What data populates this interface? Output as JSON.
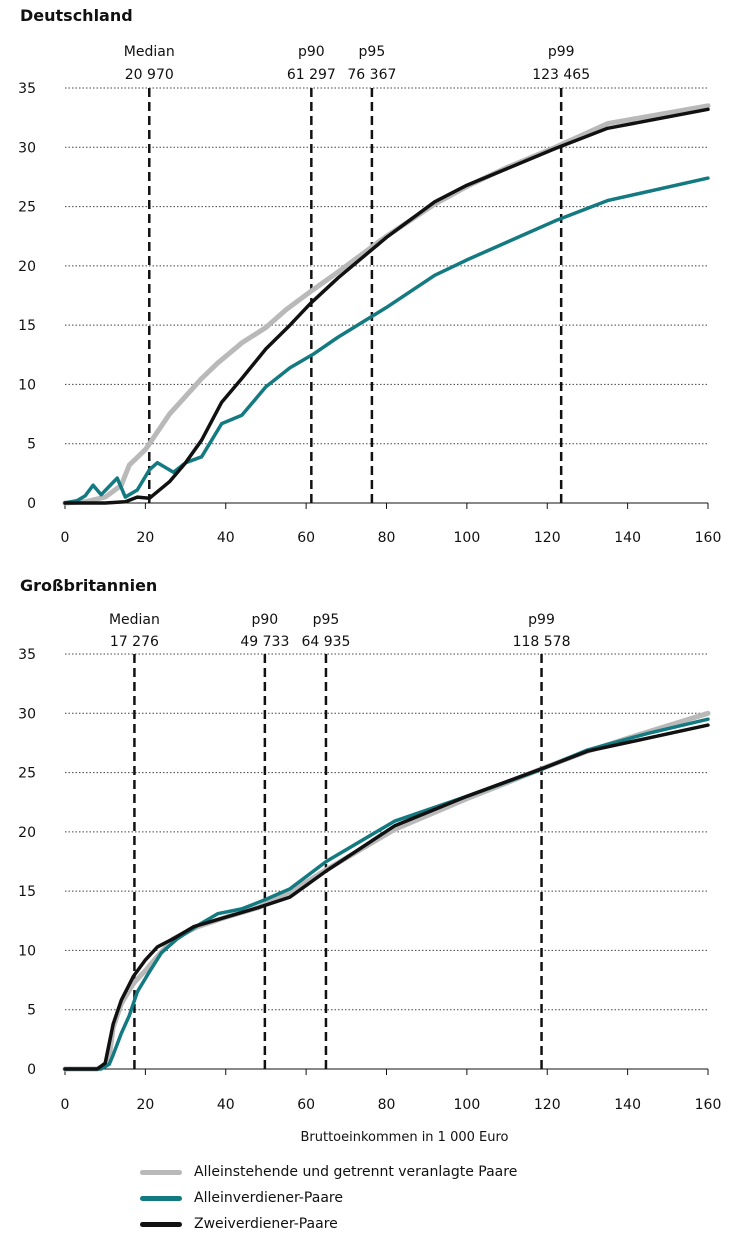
{
  "chart_data": [
    {
      "type": "line",
      "title": "Deutschland",
      "xlabel": "",
      "ylabel": "",
      "xlim": [
        0,
        160
      ],
      "ylim": [
        0,
        35
      ],
      "xticks": [
        0,
        20,
        40,
        60,
        80,
        100,
        120,
        140,
        160
      ],
      "yticks": [
        0,
        5,
        10,
        15,
        20,
        25,
        30,
        35
      ],
      "grid": "horizontal-dotted",
      "percentiles": [
        {
          "label": "Median",
          "value_label": "20 970",
          "x": 20.97
        },
        {
          "label": "p90",
          "value_label": "61 297",
          "x": 61.297
        },
        {
          "label": "p95",
          "value_label": "76 367",
          "x": 76.367
        },
        {
          "label": "p99",
          "value_label": "123 465",
          "x": 123.465
        }
      ],
      "series": [
        {
          "name": "Alleinstehende und getrennt veranlagte Paare",
          "color": "#b9b9b9",
          "points": [
            [
              0,
              0
            ],
            [
              5,
              0.1
            ],
            [
              10,
              0.5
            ],
            [
              14,
              1.5
            ],
            [
              16,
              3.2
            ],
            [
              20,
              4.5
            ],
            [
              22,
              5.5
            ],
            [
              26,
              7.5
            ],
            [
              30,
              9
            ],
            [
              34,
              10.5
            ],
            [
              38,
              11.8
            ],
            [
              44,
              13.5
            ],
            [
              50,
              14.8
            ],
            [
              55,
              16.3
            ],
            [
              61,
              17.8
            ],
            [
              68,
              19.5
            ],
            [
              80,
              22.5
            ],
            [
              92,
              25.2
            ],
            [
              100,
              26.7
            ],
            [
              110,
              28.3
            ],
            [
              122,
              30
            ],
            [
              135,
              32
            ],
            [
              160,
              33.5
            ]
          ]
        },
        {
          "name": "Alleinverdiener-Paare",
          "color": "#127a80",
          "points": [
            [
              0,
              0
            ],
            [
              3,
              0.2
            ],
            [
              5,
              0.6
            ],
            [
              7,
              1.5
            ],
            [
              9,
              0.7
            ],
            [
              11,
              1.4
            ],
            [
              13,
              2.1
            ],
            [
              15,
              0.5
            ],
            [
              18,
              1.1
            ],
            [
              21,
              2.8
            ],
            [
              23,
              3.4
            ],
            [
              27,
              2.6
            ],
            [
              30,
              3.4
            ],
            [
              34,
              3.9
            ],
            [
              39,
              6.7
            ],
            [
              44,
              7.4
            ],
            [
              50,
              9.8
            ],
            [
              56,
              11.4
            ],
            [
              62,
              12.6
            ],
            [
              68,
              14
            ],
            [
              80,
              16.5
            ],
            [
              92,
              19.2
            ],
            [
              100,
              20.5
            ],
            [
              110,
              22
            ],
            [
              122,
              23.8
            ],
            [
              135,
              25.5
            ],
            [
              160,
              27.4
            ]
          ]
        },
        {
          "name": "Zweiverdiener-Paare",
          "color": "#111111",
          "points": [
            [
              0,
              0
            ],
            [
              10,
              0
            ],
            [
              15,
              0.1
            ],
            [
              18,
              0.5
            ],
            [
              21,
              0.4
            ],
            [
              26,
              1.8
            ],
            [
              30,
              3.4
            ],
            [
              34,
              5.3
            ],
            [
              39,
              8.5
            ],
            [
              44,
              10.5
            ],
            [
              50,
              13
            ],
            [
              56,
              15
            ],
            [
              61,
              16.8
            ],
            [
              68,
              19
            ],
            [
              80,
              22.4
            ],
            [
              92,
              25.4
            ],
            [
              100,
              26.8
            ],
            [
              110,
              28.2
            ],
            [
              122,
              29.9
            ],
            [
              135,
              31.6
            ],
            [
              160,
              33.2
            ]
          ]
        }
      ]
    },
    {
      "type": "line",
      "title": "Großbritannien",
      "xlabel": "Bruttoeinkommen in 1 000 Euro",
      "ylabel": "",
      "xlim": [
        0,
        160
      ],
      "ylim": [
        0,
        35
      ],
      "xticks": [
        0,
        20,
        40,
        60,
        80,
        100,
        120,
        140,
        160
      ],
      "yticks": [
        0,
        5,
        10,
        15,
        20,
        25,
        30,
        35
      ],
      "grid": "horizontal-dotted",
      "percentiles": [
        {
          "label": "Median",
          "value_label": "17 276",
          "x": 17.276
        },
        {
          "label": "p90",
          "value_label": "49 733",
          "x": 49.733
        },
        {
          "label": "p95",
          "value_label": "64 935",
          "x": 64.935
        },
        {
          "label": "p99",
          "value_label": "118 578",
          "x": 118.578
        }
      ],
      "series": [
        {
          "name": "Alleinstehende und getrennt veranlagte Paare",
          "color": "#b9b9b9",
          "points": [
            [
              0,
              0
            ],
            [
              8,
              0
            ],
            [
              10,
              0.3
            ],
            [
              11,
              1
            ],
            [
              12,
              3.5
            ],
            [
              14,
              5.5
            ],
            [
              17,
              7.2
            ],
            [
              20,
              8.3
            ],
            [
              23,
              9.5
            ],
            [
              27,
              11
            ],
            [
              33,
              12
            ],
            [
              40,
              12.8
            ],
            [
              48,
              13.6
            ],
            [
              56,
              14.9
            ],
            [
              65,
              16.8
            ],
            [
              82,
              20.2
            ],
            [
              100,
              22.8
            ],
            [
              120,
              25.5
            ],
            [
              130,
              26.8
            ],
            [
              140,
              27.9
            ],
            [
              160,
              30
            ]
          ]
        },
        {
          "name": "Alleinverdiener-Paare",
          "color": "#127a80",
          "points": [
            [
              0,
              0
            ],
            [
              9,
              0
            ],
            [
              11,
              0.4
            ],
            [
              12,
              1.2
            ],
            [
              14,
              3
            ],
            [
              16,
              4.5
            ],
            [
              18,
              6.5
            ],
            [
              21,
              8.2
            ],
            [
              24,
              9.8
            ],
            [
              28,
              11
            ],
            [
              33,
              12.1
            ],
            [
              38,
              13.1
            ],
            [
              44,
              13.5
            ],
            [
              50,
              14.3
            ],
            [
              56,
              15.2
            ],
            [
              65,
              17.5
            ],
            [
              82,
              20.9
            ],
            [
              100,
              23
            ],
            [
              118,
              25.2
            ],
            [
              130,
              26.9
            ],
            [
              145,
              28.3
            ],
            [
              160,
              29.5
            ]
          ]
        },
        {
          "name": "Zweiverdiener-Paare",
          "color": "#111111",
          "points": [
            [
              0,
              0
            ],
            [
              8,
              0
            ],
            [
              10,
              0.5
            ],
            [
              12,
              3.8
            ],
            [
              14,
              5.8
            ],
            [
              17,
              7.8
            ],
            [
              20,
              9.2
            ],
            [
              23,
              10.3
            ],
            [
              27,
              11
            ],
            [
              32,
              12
            ],
            [
              40,
              12.8
            ],
            [
              48,
              13.6
            ],
            [
              56,
              14.5
            ],
            [
              65,
              16.7
            ],
            [
              82,
              20.5
            ],
            [
              100,
              23
            ],
            [
              120,
              25.5
            ],
            [
              130,
              26.8
            ],
            [
              145,
              27.9
            ],
            [
              160,
              29
            ]
          ]
        }
      ]
    }
  ],
  "legend": [
    {
      "label": "Alleinstehende und getrennt veranlagte Paare",
      "color": "#b9b9b9"
    },
    {
      "label": "Alleinverdiener-Paare",
      "color": "#127a80"
    },
    {
      "label": "Zweiverdiener-Paare",
      "color": "#111111"
    }
  ]
}
